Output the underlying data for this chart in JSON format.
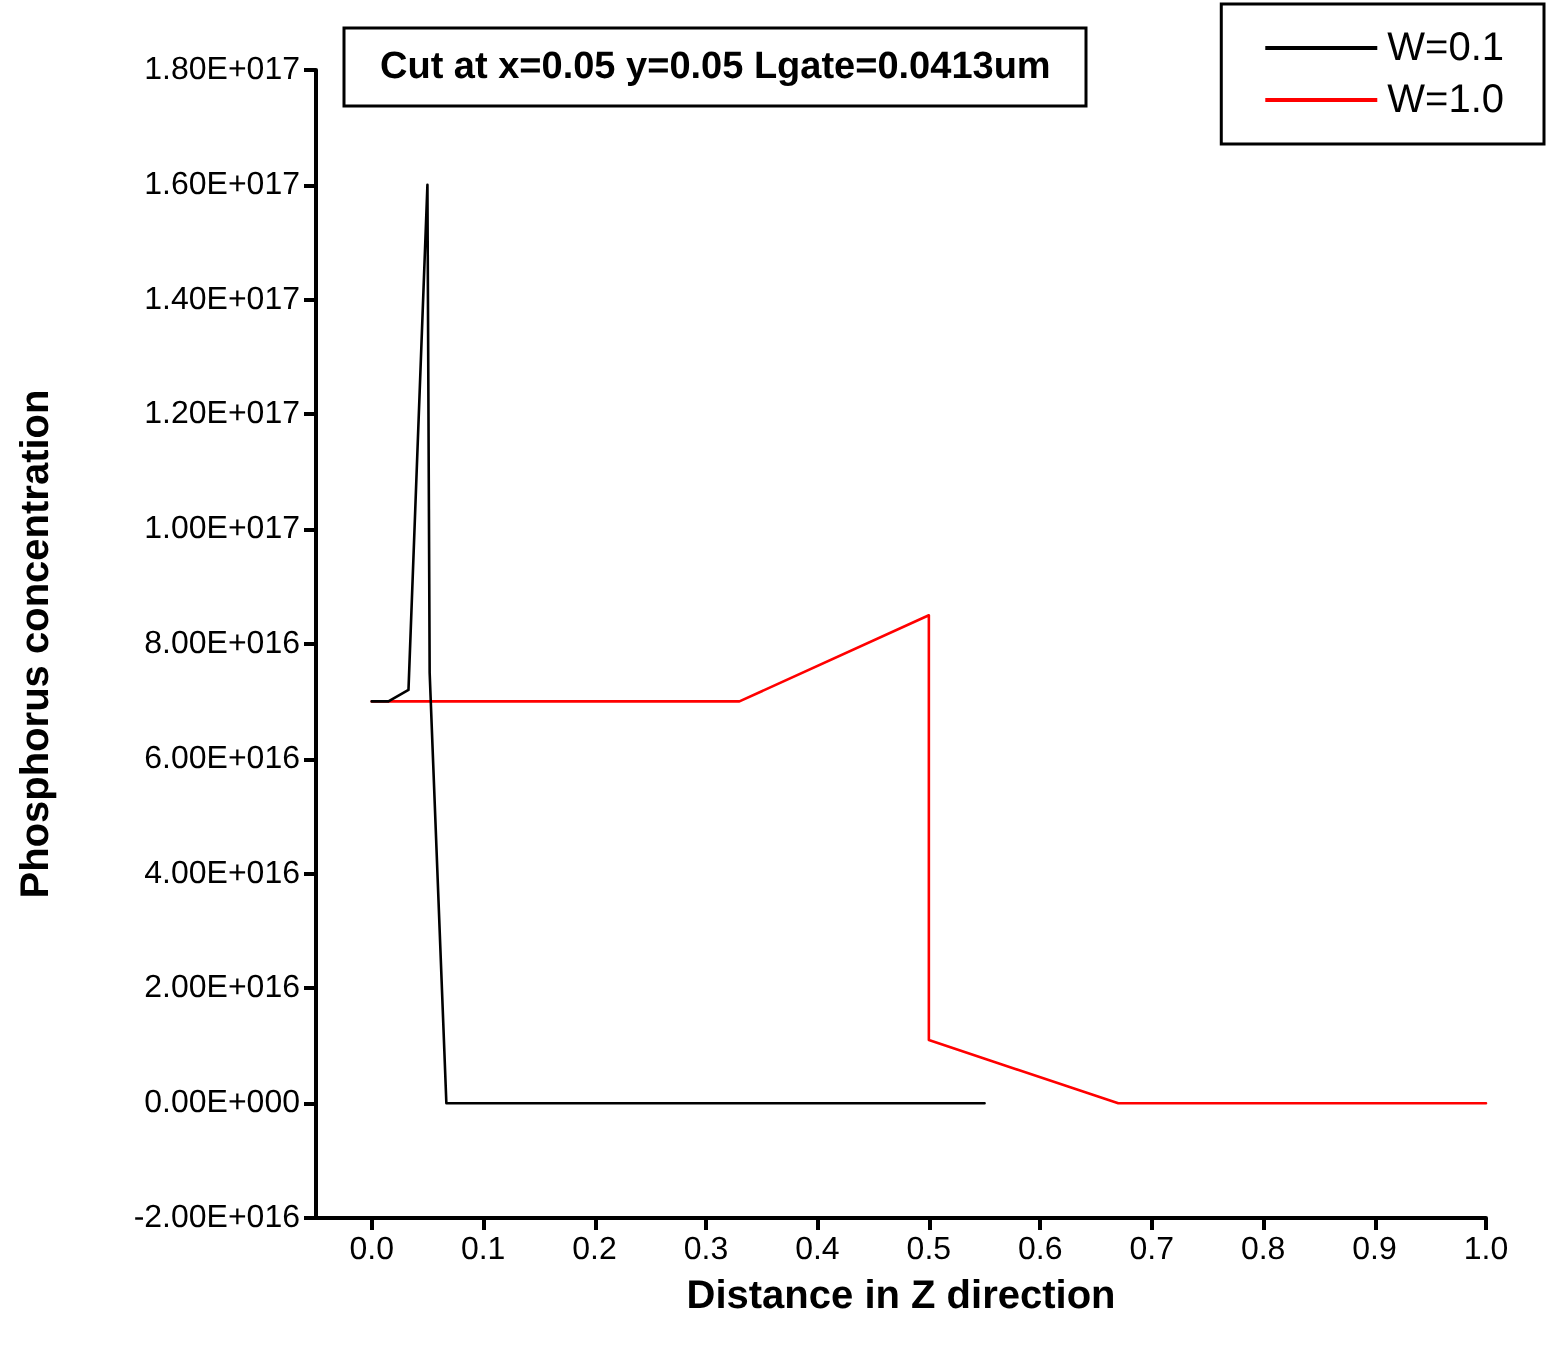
{
  "chart_data": {
    "type": "line",
    "title": "Cut at x=0.05 y=0.05 Lgate=0.0413um",
    "xlabel": "Distance in Z direction",
    "ylabel": "Phosphorus concentration",
    "series": [
      {
        "name": "W=0.1",
        "color": "#000000",
        "x": [
          0,
          0.015,
          0.033,
          0.05,
          0.052,
          0.067,
          0.55
        ],
        "values": [
          7e+16,
          7e+16,
          7.2e+16,
          1.6e+17,
          7.5e+16,
          0,
          0
        ]
      },
      {
        "name": "W=1.0",
        "color": "#ff0000",
        "x": [
          0,
          0.33,
          0.5,
          0.5,
          0.67,
          1.0
        ],
        "values": [
          7e+16,
          7e+16,
          8.5e+16,
          1.1e+16,
          0,
          0
        ]
      }
    ],
    "xlim": [
      -0.05,
      1.0
    ],
    "xticks": [
      {
        "value": 0,
        "label": "0.0"
      },
      0.1,
      0.2,
      0.3,
      0.4,
      0.5,
      0.6,
      0.7,
      0.8,
      0.9,
      {
        "value": 1,
        "label": "1.0"
      }
    ],
    "ylim": [
      -2e+16,
      1.8e+17
    ],
    "yticks": [
      {
        "value": -2e+16,
        "label": "-2.00E+016"
      },
      {
        "value": 0,
        "label": "0.00E+000"
      },
      {
        "value": 2e+16,
        "label": "2.00E+016"
      },
      {
        "value": 4e+16,
        "label": "4.00E+016"
      },
      {
        "value": 6e+16,
        "label": "6.00E+016"
      },
      {
        "value": 8e+16,
        "label": "8.00E+016"
      },
      {
        "value": 1e+17,
        "label": "1.00E+017"
      },
      {
        "value": 1.2e+17,
        "label": "1.20E+017"
      },
      {
        "value": 1.4e+17,
        "label": "1.40E+017"
      },
      {
        "value": 1.6e+17,
        "label": "1.60E+017"
      },
      {
        "value": 1.8e+17,
        "label": "1.80E+017"
      }
    ],
    "grid": false,
    "legend": "top right",
    "marker": "none",
    "line_style": "solid"
  }
}
